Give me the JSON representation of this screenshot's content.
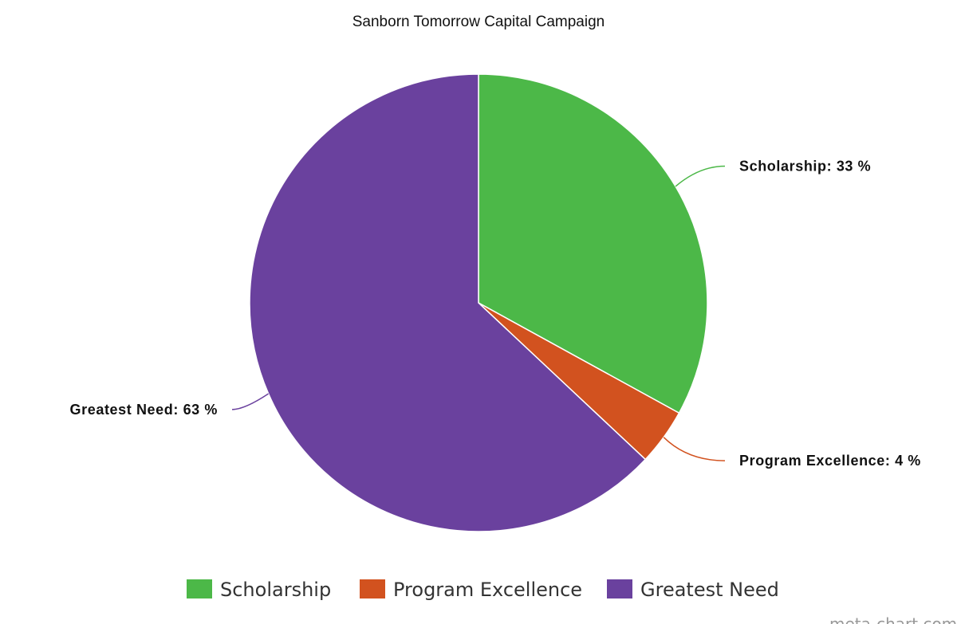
{
  "chart_data": {
    "type": "pie",
    "title": "Sanborn Tomorrow Capital Campaign",
    "categories": [
      "Scholarship",
      "Program Excellence",
      "Greatest Need"
    ],
    "values": [
      33,
      4,
      63
    ],
    "value_labels": [
      "Scholarship: 33 %",
      "Program Excellence: 4 %",
      "Greatest Need: 63 %"
    ],
    "colors": [
      "#4cb848",
      "#d2521f",
      "#6a419e"
    ],
    "legend": "bottom",
    "watermark": "meta-chart.com"
  }
}
